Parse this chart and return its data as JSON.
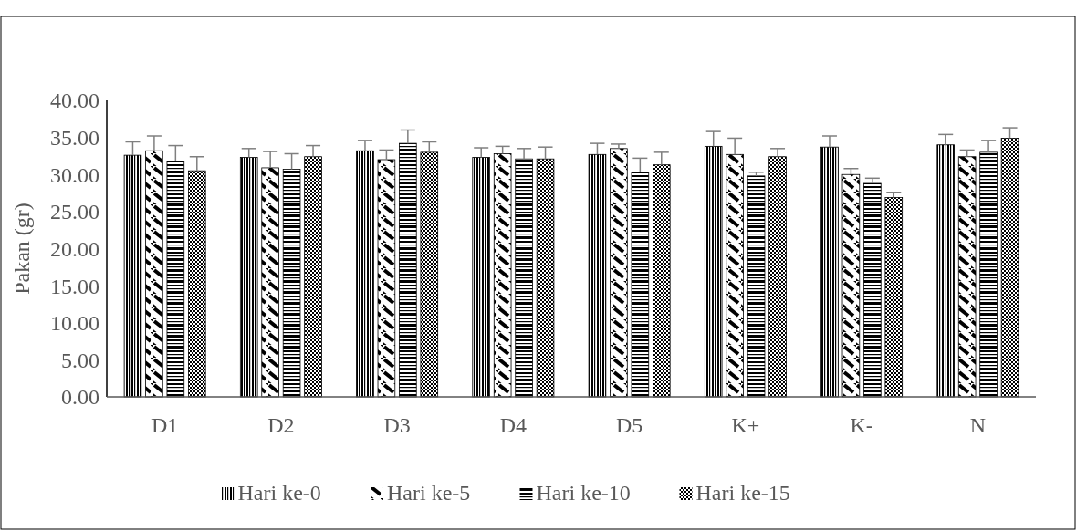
{
  "chart_data": {
    "type": "bar",
    "ylabel": "Pakan (gr)",
    "categories": [
      "D1",
      "D2",
      "D3",
      "D4",
      "D5",
      "K+",
      "K-",
      "N"
    ],
    "ylim": [
      0,
      40
    ],
    "yticks": [
      {
        "value": 0,
        "label": "0.00"
      },
      {
        "value": 5,
        "label": "5.00"
      },
      {
        "value": 10,
        "label": "10.00"
      },
      {
        "value": 15,
        "label": "15.00"
      },
      {
        "value": 20,
        "label": "20.00"
      },
      {
        "value": 25,
        "label": "25.00"
      },
      {
        "value": 30,
        "label": "30.00"
      },
      {
        "value": 35,
        "label": "35.00"
      },
      {
        "value": 40,
        "label": "40.00"
      }
    ],
    "legend": "bottom",
    "grid": false,
    "series": [
      {
        "name": "Hari ke-0",
        "color": "#000000",
        "values": [
          32.6,
          32.3,
          33.2,
          32.3,
          32.7,
          33.8,
          33.7,
          34.0
        ],
        "errors": [
          [
            32.6,
            34.4
          ],
          [
            32.3,
            33.5
          ],
          [
            33.2,
            34.6
          ],
          [
            32.3,
            33.6
          ],
          [
            32.7,
            34.2
          ],
          [
            33.8,
            35.8
          ],
          [
            33.7,
            35.2
          ],
          [
            34.0,
            35.4
          ]
        ]
      },
      {
        "name": "Hari ke-5",
        "color": "#000000",
        "values": [
          33.2,
          30.9,
          32.0,
          32.8,
          33.5,
          32.7,
          30.0,
          32.4
        ],
        "errors": [
          [
            33.2,
            35.2
          ],
          [
            30.9,
            33.1
          ],
          [
            32.0,
            33.3
          ],
          [
            32.8,
            33.8
          ],
          [
            33.5,
            34.1
          ],
          [
            32.7,
            34.9
          ],
          [
            30.0,
            30.8
          ],
          [
            32.4,
            33.3
          ]
        ]
      },
      {
        "name": "Hari ke-10",
        "color": "#000000",
        "values": [
          31.8,
          30.7,
          34.2,
          32.1,
          30.3,
          29.8,
          28.8,
          33.0
        ],
        "errors": [
          [
            31.8,
            33.9
          ],
          [
            30.7,
            32.8
          ],
          [
            34.2,
            36.0
          ],
          [
            32.1,
            33.5
          ],
          [
            30.3,
            32.2
          ],
          [
            29.8,
            30.3
          ],
          [
            28.8,
            29.5
          ],
          [
            33.0,
            34.6
          ]
        ]
      },
      {
        "name": "Hari ke-15",
        "color": "#000000",
        "values": [
          30.5,
          32.4,
          33.0,
          32.1,
          31.3,
          32.4,
          26.9,
          34.9
        ],
        "errors": [
          [
            30.5,
            32.4
          ],
          [
            32.4,
            33.9
          ],
          [
            33.0,
            34.4
          ],
          [
            32.1,
            33.7
          ],
          [
            31.3,
            33.0
          ],
          [
            32.4,
            33.5
          ],
          [
            26.9,
            27.6
          ],
          [
            34.9,
            36.3
          ]
        ]
      }
    ]
  }
}
